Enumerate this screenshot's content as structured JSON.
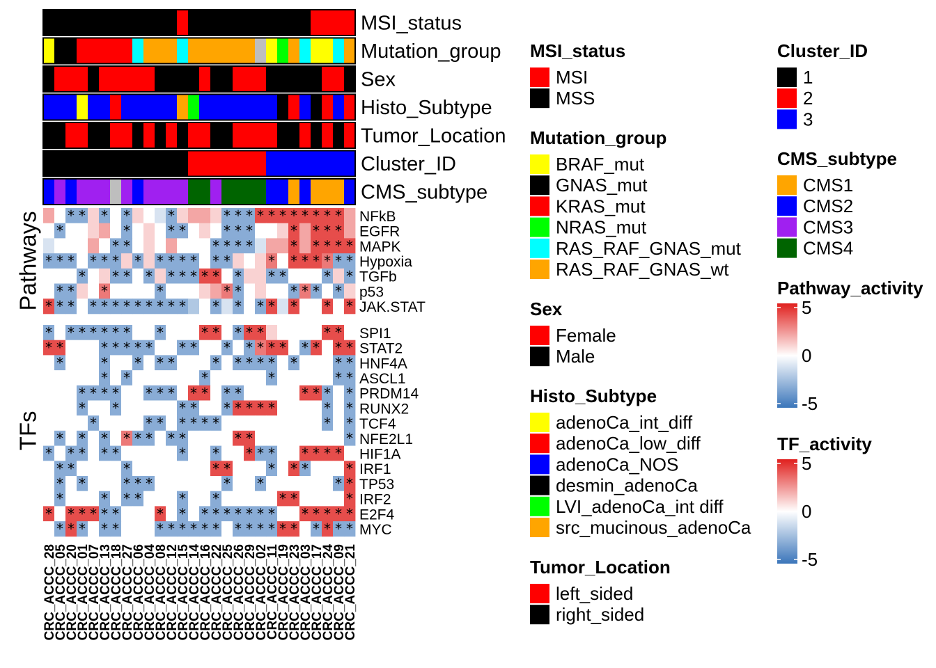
{
  "chart_data": {
    "type": "heatmap",
    "columns": [
      "CRC_ACCC_28",
      "CRC_ACCC_05",
      "CRC_ACCC_20",
      "CRC_ACCC_01",
      "CRC_ACCC_07",
      "CRC_ACCC_13",
      "CRC_ACCC_18",
      "CRC_ACCC_27",
      "CRC_ACCC_06",
      "CRC_ACCC_04",
      "CRC_ACCC_08",
      "CRC_ACCC_12",
      "CRC_ACCC_15",
      "CRC_ACCC_14",
      "CRC_ACCC_16",
      "CRC_ACCC_22",
      "CRC_ACCC_25",
      "CRC_ACCC_26",
      "CRC_ACCC_29",
      "CRC_ACCC_02",
      "CRC_ACCC_11",
      "CRC_ACCC_19",
      "CRC_ACCC_23",
      "CRC_ACCC_03",
      "CRC_ACCC_17",
      "CRC_ACCC_24",
      "CRC_ACCC_09",
      "CRC_ACCC_21"
    ],
    "annotations": [
      {
        "name": "MSI_status",
        "values": [
          "MSS",
          "MSS",
          "MSS",
          "MSS",
          "MSS",
          "MSS",
          "MSS",
          "MSS",
          "MSS",
          "MSS",
          "MSS",
          "MSS",
          "MSI",
          "MSS",
          "MSS",
          "MSS",
          "MSS",
          "MSS",
          "MSS",
          "MSS",
          "MSS",
          "MSS",
          "MSS",
          "MSS",
          "MSI",
          "MSI",
          "MSI",
          "MSI"
        ]
      },
      {
        "name": "Mutation_group",
        "values": [
          "BRAF_mut",
          "GNAS_mut",
          "GNAS_mut",
          "KRAS_mut",
          "KRAS_mut",
          "KRAS_mut",
          "KRAS_mut",
          "KRAS_mut",
          "RAS_RAF_GNAS_mut",
          "RAS_RAF_GNAS_wt",
          "RAS_RAF_GNAS_wt",
          "RAS_RAF_GNAS_wt",
          "RAS_RAF_GNAS_mut",
          "RAS_RAF_GNAS_wt",
          "RAS_RAF_GNAS_wt",
          "RAS_RAF_GNAS_wt",
          "RAS_RAF_GNAS_wt",
          "RAS_RAF_GNAS_wt",
          "RAS_RAF_GNAS_wt",
          "NA",
          "BRAF_mut",
          "NRAS_mut",
          "RAS_RAF_GNAS_wt",
          "RAS_RAF_GNAS_mut",
          "BRAF_mut",
          "BRAF_mut",
          "RAS_RAF_GNAS_mut",
          "RAS_RAF_GNAS_wt"
        ]
      },
      {
        "name": "Sex",
        "values": [
          "Male",
          "Female",
          "Female",
          "Female",
          "Male",
          "Female",
          "Female",
          "Female",
          "Female",
          "Female",
          "Male",
          "Male",
          "Male",
          "Male",
          "Female",
          "Male",
          "Male",
          "Female",
          "Female",
          "Female",
          "Male",
          "Male",
          "Male",
          "Male",
          "Male",
          "Female",
          "Female",
          "Male"
        ]
      },
      {
        "name": "Histo_Subtype",
        "values": [
          "adenoCa_NOS",
          "adenoCa_NOS",
          "adenoCa_NOS",
          "adenoCa_int_diff",
          "adenoCa_NOS",
          "adenoCa_NOS",
          "adenoCa_low_diff",
          "adenoCa_NOS",
          "adenoCa_NOS",
          "adenoCa_NOS",
          "adenoCa_NOS",
          "adenoCa_NOS",
          "src_mucinous_adenoCa",
          "LVI_adenoCa_int diff",
          "adenoCa_NOS",
          "adenoCa_NOS",
          "adenoCa_NOS",
          "adenoCa_NOS",
          "adenoCa_NOS",
          "adenoCa_NOS",
          "adenoCa_NOS",
          "desmin_adenoCa",
          "adenoCa_low_diff",
          "adenoCa_NOS",
          "desmin_adenoCa",
          "adenoCa_low_diff",
          "adenoCa_NOS",
          "adenoCa_low_diff"
        ]
      },
      {
        "name": "Tumor_Location",
        "values": [
          "right_sided",
          "right_sided",
          "left_sided",
          "left_sided",
          "right_sided",
          "right_sided",
          "left_sided",
          "left_sided",
          "right_sided",
          "left_sided",
          "right_sided",
          "left_sided",
          "right_sided",
          "left_sided",
          "left_sided",
          "right_sided",
          "right_sided",
          "left_sided",
          "left_sided",
          "left_sided",
          "left_sided",
          "right_sided",
          "right_sided",
          "left_sided",
          "right_sided",
          "left_sided",
          "right_sided",
          "left_sided"
        ]
      },
      {
        "name": "Cluster_ID",
        "values": [
          "1",
          "1",
          "1",
          "1",
          "1",
          "1",
          "1",
          "1",
          "1",
          "1",
          "1",
          "1",
          "1",
          "2",
          "2",
          "2",
          "2",
          "2",
          "2",
          "2",
          "3",
          "3",
          "3",
          "3",
          "3",
          "3",
          "3",
          "3"
        ]
      },
      {
        "name": "CMS_subtype",
        "values": [
          "CMS2",
          "CMS3",
          "CMS2",
          "CMS3",
          "CMS3",
          "CMS3",
          "NA",
          "CMS3",
          "CMS2",
          "CMS3",
          "CMS3",
          "CMS3",
          "CMS3",
          "CMS4",
          "CMS4",
          "CMS3",
          "CMS4",
          "CMS4",
          "CMS4",
          "CMS4",
          "CMS2",
          "CMS2",
          "CMS1",
          "CMS2",
          "CMS1",
          "CMS1",
          "CMS1",
          "CMS2"
        ]
      }
    ],
    "pathways": {
      "block_label": "Pathways",
      "rows": [
        "NFkB",
        "EGFR",
        "MAPK",
        "Hypoxia",
        "TGFb",
        "p53",
        "JAK.STAT"
      ],
      "values": [
        [
          2,
          0,
          -3,
          -3,
          1,
          -3,
          0,
          -3,
          1,
          0,
          -1,
          -3,
          1,
          2,
          2,
          1,
          -3,
          -3,
          -3,
          4,
          4,
          4,
          4,
          4,
          4,
          4,
          4,
          2
        ],
        [
          0,
          -3,
          0,
          0,
          1,
          2,
          0,
          -3,
          0,
          1,
          0,
          -3,
          -3,
          0,
          1,
          0,
          -3,
          -3,
          -3,
          0,
          0,
          1,
          4,
          2,
          4,
          4,
          4,
          2
        ],
        [
          -1,
          0,
          0,
          0,
          2,
          0,
          -3,
          -3,
          0,
          1,
          0,
          2,
          0,
          0,
          0,
          -3,
          -3,
          -3,
          -3,
          -1,
          2,
          2,
          4,
          2,
          4,
          4,
          4,
          4
        ],
        [
          -3,
          -3,
          -3,
          0,
          -3,
          -3,
          -3,
          1,
          -3,
          1,
          -3,
          -3,
          -3,
          -3,
          0,
          -3,
          -3,
          1,
          0,
          1,
          3,
          0,
          4,
          4,
          4,
          3,
          -3,
          -3
        ],
        [
          0,
          0,
          0,
          -3,
          0,
          1,
          -3,
          -3,
          0,
          -3,
          1,
          -3,
          -3,
          -3,
          4,
          4,
          0,
          -3,
          1,
          1,
          -3,
          -3,
          0,
          0,
          0,
          -3,
          1,
          -3
        ],
        [
          0,
          -3,
          -3,
          1,
          0,
          3,
          0,
          0,
          0,
          0,
          -3,
          0,
          0,
          0,
          1,
          2,
          3,
          -3,
          0,
          1,
          0,
          0,
          -3,
          3,
          -3,
          0,
          -3,
          1
        ],
        [
          4,
          -3,
          -3,
          0,
          -3,
          -3,
          -3,
          -3,
          -3,
          -3,
          -3,
          -3,
          -3,
          -2,
          0,
          -3,
          -1,
          -3,
          0,
          -3,
          4,
          -1,
          4,
          0,
          0,
          4,
          0,
          4
        ]
      ]
    },
    "tfs": {
      "block_label": "TFs",
      "rows": [
        "SPI1",
        "STAT2",
        "HNF4A",
        "ASCL1",
        "PRDM14",
        "RUNX2",
        "TCF4",
        "NFE2L1",
        "HIF1A",
        "IRF1",
        "TP53",
        "IRF2",
        "E2F4",
        "MYC"
      ],
      "values": [
        [
          -3,
          0,
          -3,
          -3,
          -3,
          -3,
          -3,
          -3,
          0,
          0,
          -3,
          0,
          0,
          0,
          4,
          4,
          0,
          -3,
          4,
          4,
          1,
          0,
          0,
          0,
          0,
          4,
          4,
          0
        ],
        [
          4,
          4,
          0,
          0,
          0,
          -3,
          -3,
          -3,
          -3,
          -3,
          0,
          0,
          -3,
          -3,
          0,
          0,
          -3,
          0,
          -3,
          3,
          4,
          4,
          0,
          -3,
          4,
          0,
          4,
          4
        ],
        [
          0,
          -3,
          0,
          0,
          0,
          -3,
          0,
          0,
          -3,
          0,
          -3,
          -3,
          0,
          0,
          0,
          -3,
          0,
          -3,
          -3,
          -3,
          -3,
          0,
          -3,
          0,
          0,
          0,
          -3,
          -3
        ],
        [
          0,
          0,
          0,
          0,
          0,
          -3,
          0,
          -3,
          0,
          0,
          0,
          0,
          0,
          0,
          -3,
          0,
          0,
          0,
          0,
          0,
          -3,
          0,
          0,
          0,
          0,
          0,
          -3,
          -3
        ],
        [
          0,
          0,
          0,
          -3,
          -3,
          -3,
          -3,
          0,
          0,
          -3,
          -3,
          -3,
          0,
          4,
          4,
          0,
          -3,
          -3,
          0,
          0,
          0,
          0,
          0,
          4,
          4,
          -3,
          0,
          -3
        ],
        [
          0,
          0,
          0,
          -3,
          0,
          0,
          -3,
          0,
          0,
          0,
          0,
          0,
          -3,
          -3,
          0,
          0,
          -3,
          4,
          4,
          4,
          4,
          0,
          0,
          0,
          0,
          -3,
          0,
          -3
        ],
        [
          0,
          0,
          0,
          0,
          -3,
          0,
          0,
          0,
          0,
          -3,
          -3,
          0,
          -3,
          -3,
          -3,
          -3,
          0,
          0,
          0,
          0,
          0,
          0,
          0,
          0,
          0,
          -3,
          0,
          -3
        ],
        [
          0,
          -3,
          0,
          -3,
          0,
          -3,
          0,
          3,
          -3,
          -3,
          0,
          -3,
          -3,
          0,
          0,
          0,
          0,
          4,
          4,
          0,
          0,
          0,
          0,
          0,
          0,
          0,
          0,
          -3
        ],
        [
          -3,
          0,
          -3,
          -3,
          0,
          -3,
          -3,
          0,
          0,
          0,
          0,
          0,
          -3,
          0,
          0,
          -3,
          0,
          0,
          4,
          -3,
          -3,
          0,
          0,
          4,
          4,
          4,
          4,
          0
        ],
        [
          0,
          -3,
          -3,
          0,
          0,
          0,
          0,
          -3,
          0,
          0,
          0,
          0,
          0,
          0,
          0,
          4,
          4,
          0,
          0,
          0,
          -3,
          0,
          4,
          -3,
          0,
          0,
          0,
          4
        ],
        [
          0,
          -3,
          0,
          -3,
          0,
          0,
          0,
          -3,
          -3,
          -3,
          0,
          0,
          0,
          0,
          0,
          0,
          -3,
          0,
          0,
          -3,
          0,
          0,
          0,
          0,
          0,
          0,
          -3,
          4
        ],
        [
          0,
          -3,
          0,
          0,
          0,
          -3,
          0,
          -3,
          -3,
          0,
          0,
          0,
          -3,
          0,
          0,
          -3,
          0,
          0,
          0,
          0,
          0,
          4,
          4,
          0,
          0,
          0,
          0,
          4
        ],
        [
          4,
          0,
          4,
          4,
          4,
          -3,
          -3,
          0,
          0,
          0,
          4,
          0,
          -3,
          0,
          -3,
          -3,
          -3,
          -3,
          -3,
          -3,
          -3,
          0,
          0,
          4,
          4,
          4,
          4,
          4
        ],
        [
          0,
          -3,
          4,
          -3,
          0,
          -3,
          -3,
          0,
          0,
          0,
          -3,
          -3,
          -3,
          -3,
          -3,
          -3,
          0,
          -3,
          -3,
          -3,
          -3,
          4,
          4,
          0,
          -3,
          4,
          -3,
          -3
        ]
      ]
    },
    "color_scale_range": [
      -5,
      5
    ],
    "significance_marker": "*"
  },
  "annotation_colors": {
    "MSI_status": {
      "MSI": "#FF0000",
      "MSS": "#000000"
    },
    "Mutation_group": {
      "BRAF_mut": "#FFFF00",
      "GNAS_mut": "#000000",
      "KRAS_mut": "#FF0000",
      "NRAS_mut": "#00FF00",
      "RAS_RAF_GNAS_mut": "#00FFFF",
      "RAS_RAF_GNAS_wt": "#FFA500",
      "NA": "#BEBEBE"
    },
    "Sex": {
      "Female": "#FF0000",
      "Male": "#000000"
    },
    "Histo_Subtype": {
      "adenoCa_int_diff": "#FFFF00",
      "adenoCa_low_diff": "#FF0000",
      "adenoCa_NOS": "#0000FF",
      "desmin_adenoCa": "#000000",
      "LVI_adenoCa_int diff": "#00FF00",
      "src_mucinous_adenoCa": "#FFA500"
    },
    "Tumor_Location": {
      "left_sided": "#FF0000",
      "right_sided": "#000000"
    },
    "Cluster_ID": {
      "1": "#000000",
      "2": "#FF0000",
      "3": "#0000FF"
    },
    "CMS_subtype": {
      "CMS1": "#FFA500",
      "CMS2": "#0000FF",
      "CMS3": "#A020F0",
      "CMS4": "#006400",
      "NA": "#BEBEBE"
    }
  },
  "legends": [
    {
      "title": "MSI_status",
      "kind": "discrete",
      "items": [
        "MSI",
        "MSS"
      ]
    },
    {
      "title": "Mutation_group",
      "kind": "discrete",
      "items": [
        "BRAF_mut",
        "GNAS_mut",
        "KRAS_mut",
        "NRAS_mut",
        "RAS_RAF_GNAS_mut",
        "RAS_RAF_GNAS_wt"
      ]
    },
    {
      "title": "Sex",
      "kind": "discrete",
      "items": [
        "Female",
        "Male"
      ]
    },
    {
      "title": "Histo_Subtype",
      "kind": "discrete",
      "items": [
        "adenoCa_int_diff",
        "adenoCa_low_diff",
        "adenoCa_NOS",
        "desmin_adenoCa",
        "LVI_adenoCa_int diff",
        "src_mucinous_adenoCa"
      ]
    },
    {
      "title": "Tumor_Location",
      "kind": "discrete",
      "items": [
        "left_sided",
        "right_sided"
      ]
    },
    {
      "title": "Cluster_ID",
      "kind": "discrete",
      "items": [
        "1",
        "2",
        "3"
      ]
    },
    {
      "title": "CMS_subtype",
      "kind": "discrete",
      "items": [
        "CMS1",
        "CMS2",
        "CMS3",
        "CMS4"
      ]
    },
    {
      "title": "Pathway_activity",
      "kind": "continuous",
      "ticks": [
        "5",
        "0",
        "-5"
      ]
    },
    {
      "title": "TF_activity",
      "kind": "continuous",
      "ticks": [
        "5",
        "0",
        "-5"
      ]
    }
  ],
  "scale_colors": {
    "low": "#3A75BA",
    "mid": "#FFFFFF",
    "high": "#E0201E"
  }
}
